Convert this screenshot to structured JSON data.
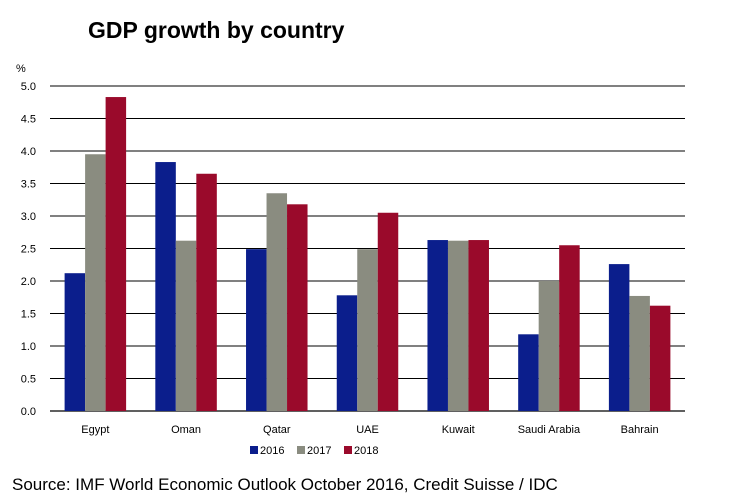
{
  "chart_data": {
    "type": "bar",
    "title": "GDP growth by country",
    "ylabel": "%",
    "xlabel": "",
    "ylim": [
      0,
      5
    ],
    "yticks": [
      "0.0",
      "0.5",
      "1.0",
      "1.5",
      "2.0",
      "2.5",
      "3.0",
      "3.5",
      "4.0",
      "4.5",
      "5.0"
    ],
    "grid": true,
    "legend_position": "bottom-center",
    "categories": [
      "Egypt",
      "Oman",
      "Qatar",
      "UAE",
      "Kuwait",
      "Saudi Arabia",
      "Bahrain"
    ],
    "series": [
      {
        "name": "2016",
        "color": "#0b1e8c",
        "values": [
          2.12,
          3.83,
          2.49,
          1.78,
          2.63,
          1.18,
          2.26
        ]
      },
      {
        "name": "2017",
        "color": "#8a8c80",
        "values": [
          3.95,
          2.62,
          3.35,
          2.49,
          2.62,
          2.0,
          1.77
        ]
      },
      {
        "name": "2018",
        "color": "#9a0a2b",
        "values": [
          4.83,
          3.65,
          3.18,
          3.05,
          2.63,
          2.55,
          1.62
        ]
      }
    ],
    "source": "Source: IMF World Economic Outlook October 2016, Credit Suisse / IDC"
  }
}
